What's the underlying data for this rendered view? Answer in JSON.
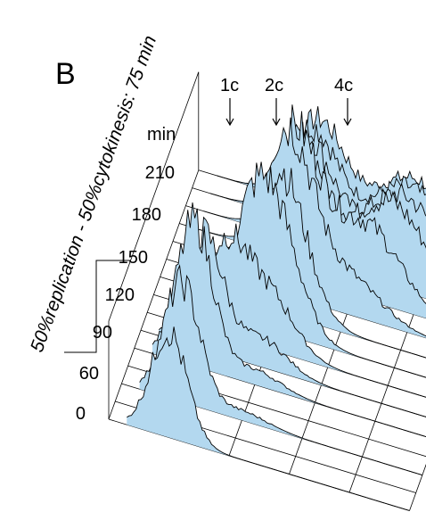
{
  "panel_letter": "B",
  "side_caption": "50%replication - 50%cytokinesis: 75 min",
  "chart_data": {
    "type": "area",
    "subtype": "3d-stacked-histograms",
    "title": "",
    "time_unit": "min",
    "time_labels": [
      "0",
      "60",
      "90",
      "120",
      "150",
      "180",
      "210"
    ],
    "dna_content_markers": [
      "1c",
      "2c",
      "4c"
    ],
    "bracket_span_minutes": [
      "60",
      "150"
    ],
    "fill_color": "#b3d8ef",
    "line_color": "#000000",
    "series": [
      {
        "time": 0,
        "peaks": [
          {
            "pos": 1.0,
            "height": 0.55
          }
        ]
      },
      {
        "time": 30,
        "peaks": [
          {
            "pos": 1.0,
            "height": 0.62
          },
          {
            "pos": 2.0,
            "height": 0.05
          }
        ]
      },
      {
        "time": 60,
        "peaks": [
          {
            "pos": 1.0,
            "height": 0.75
          },
          {
            "pos": 2.0,
            "height": 0.08
          }
        ]
      },
      {
        "time": 75,
        "peaks": [
          {
            "pos": 1.05,
            "height": 0.6
          },
          {
            "pos": 2.0,
            "height": 0.15
          }
        ]
      },
      {
        "time": 90,
        "peaks": [
          {
            "pos": 1.3,
            "height": 0.45
          },
          {
            "pos": 2.0,
            "height": 0.3
          }
        ]
      },
      {
        "time": 105,
        "peaks": [
          {
            "pos": 1.6,
            "height": 0.35
          },
          {
            "pos": 2.0,
            "height": 0.55
          }
        ]
      },
      {
        "time": 120,
        "peaks": [
          {
            "pos": 2.0,
            "height": 0.75
          }
        ]
      },
      {
        "time": 135,
        "peaks": [
          {
            "pos": 2.0,
            "height": 0.85
          },
          {
            "pos": 3.0,
            "height": 0.2
          }
        ]
      },
      {
        "time": 150,
        "peaks": [
          {
            "pos": 2.0,
            "height": 0.75
          },
          {
            "pos": 3.2,
            "height": 0.4
          }
        ]
      },
      {
        "time": 165,
        "peaks": [
          {
            "pos": 2.0,
            "height": 0.6
          },
          {
            "pos": 3.5,
            "height": 0.45
          }
        ]
      },
      {
        "time": 180,
        "peaks": [
          {
            "pos": 2.0,
            "height": 0.55
          },
          {
            "pos": 3.6,
            "height": 0.4
          }
        ]
      },
      {
        "time": 195,
        "peaks": [
          {
            "pos": 2.0,
            "height": 0.5
          },
          {
            "pos": 3.6,
            "height": 0.35
          }
        ]
      },
      {
        "time": 210,
        "peaks": [
          {
            "pos": 2.0,
            "height": 0.45
          },
          {
            "pos": 3.6,
            "height": 0.3
          }
        ]
      }
    ]
  }
}
